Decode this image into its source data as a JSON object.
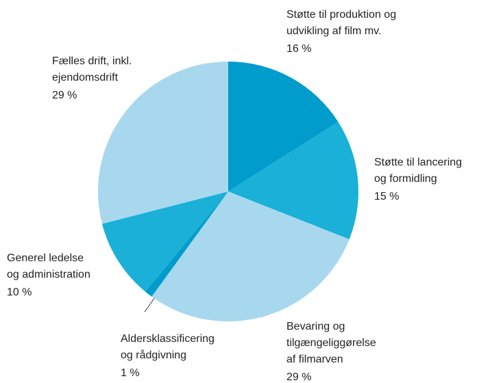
{
  "chart_data": {
    "type": "pie",
    "categories": [
      [
        "Støtte til produktion og",
        "udvikling af film mv."
      ],
      [
        "Støtte til lancering",
        "og formidling"
      ],
      [
        "Bevaring og",
        "tilgængeliggørelse",
        "af filmarven"
      ],
      [
        "Aldersklassificering",
        "og rådgivning"
      ],
      [
        "Generel ledelse",
        "og administration"
      ],
      [
        "Fælles drift, inkl.",
        "ejendomsdrift"
      ]
    ],
    "values": [
      16,
      15,
      29,
      1,
      10,
      29
    ],
    "value_labels": [
      "16 %",
      "15 %",
      "29 %",
      "1 %",
      "10 %",
      "29 %"
    ],
    "colors": [
      "#009ccc",
      "#1ab0d8",
      "#a8d8ee",
      "#009ccc",
      "#1ab0d8",
      "#a8d8ee"
    ]
  }
}
